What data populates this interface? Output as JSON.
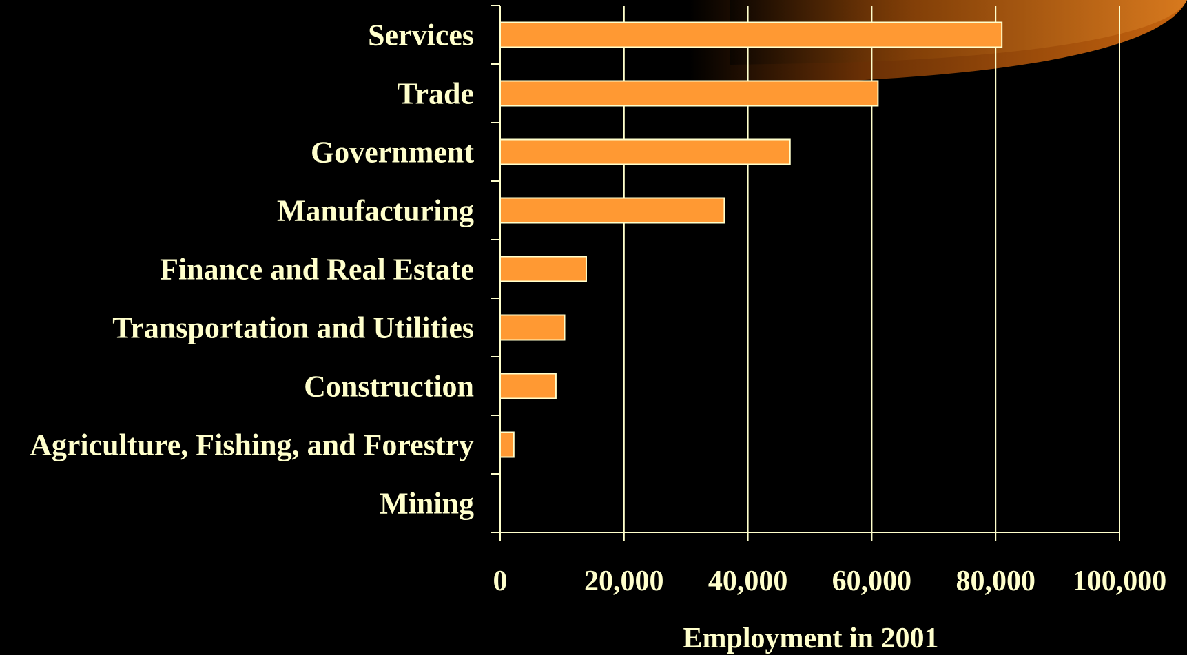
{
  "chart_data": {
    "type": "bar",
    "orientation": "horizontal",
    "categories": [
      "Services",
      "Trade",
      "Government",
      "Manufacturing",
      "Finance and Real Estate",
      "Transportation and Utilities",
      "Construction",
      "Agriculture, Fishing, and Forestry",
      "Mining"
    ],
    "values": [
      81000,
      61000,
      46800,
      36200,
      13900,
      10400,
      9000,
      2200,
      0
    ],
    "xlabel": "Employment in 2001",
    "ylabel": "",
    "xlim": [
      0,
      100000
    ],
    "xticks": [
      0,
      20000,
      40000,
      60000,
      80000,
      100000
    ],
    "xtick_labels": [
      "0",
      "20,000",
      "40,000",
      "60,000",
      "80,000",
      "100,000"
    ],
    "grid": "vertical",
    "legend": "none"
  },
  "colors": {
    "background": "#000000",
    "bar_fill": "#FF9933",
    "bar_stroke": "#FFFFCC",
    "text": "#FFFFCC",
    "axis": "#FFFFCC",
    "decoration": "#C8650F"
  }
}
